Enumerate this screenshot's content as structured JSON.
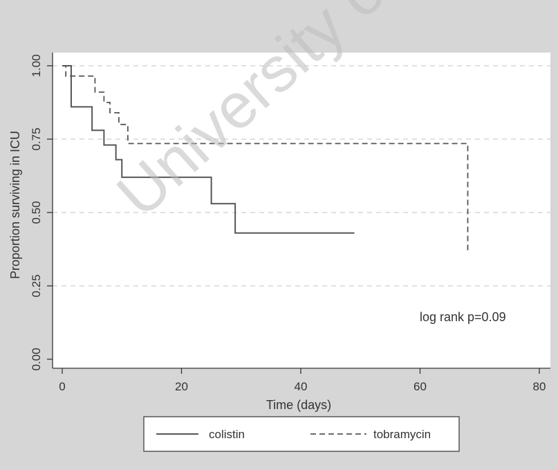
{
  "chart_data": {
    "type": "line",
    "subtype": "kaplan-meier",
    "title": "",
    "xlabel": "Time (days)",
    "ylabel": "Proportion surviving in ICU",
    "xlim": [
      0,
      80
    ],
    "ylim": [
      0,
      1
    ],
    "xticks": [
      0,
      20,
      40,
      60,
      80
    ],
    "xtick_labels": [
      "0",
      "20",
      "40",
      "60",
      "80"
    ],
    "yticks": [
      0,
      0.25,
      0.5,
      0.75,
      1
    ],
    "ytick_labels": [
      "0.00",
      "0.25",
      "0.50",
      "0.75",
      "1.00"
    ],
    "grid": "horizontal dashed",
    "legend_position": "bottom",
    "annotation": "log rank p=0.09",
    "watermark": "University of Cape Town",
    "series": [
      {
        "name": "colistin",
        "style": "solid",
        "color": "#555555",
        "x": [
          0,
          1.5,
          5,
          7,
          9,
          10,
          25,
          29,
          49
        ],
        "y": [
          1.0,
          0.86,
          0.78,
          0.73,
          0.68,
          0.62,
          0.53,
          0.43,
          0.43
        ]
      },
      {
        "name": "tobramycin",
        "style": "dashed",
        "color": "#555555",
        "x": [
          0,
          0.6,
          5.5,
          7,
          8,
          9.5,
          11,
          68,
          68.5
        ],
        "y": [
          1.0,
          0.965,
          0.91,
          0.875,
          0.84,
          0.8,
          0.735,
          0.37,
          0.37
        ]
      }
    ]
  }
}
